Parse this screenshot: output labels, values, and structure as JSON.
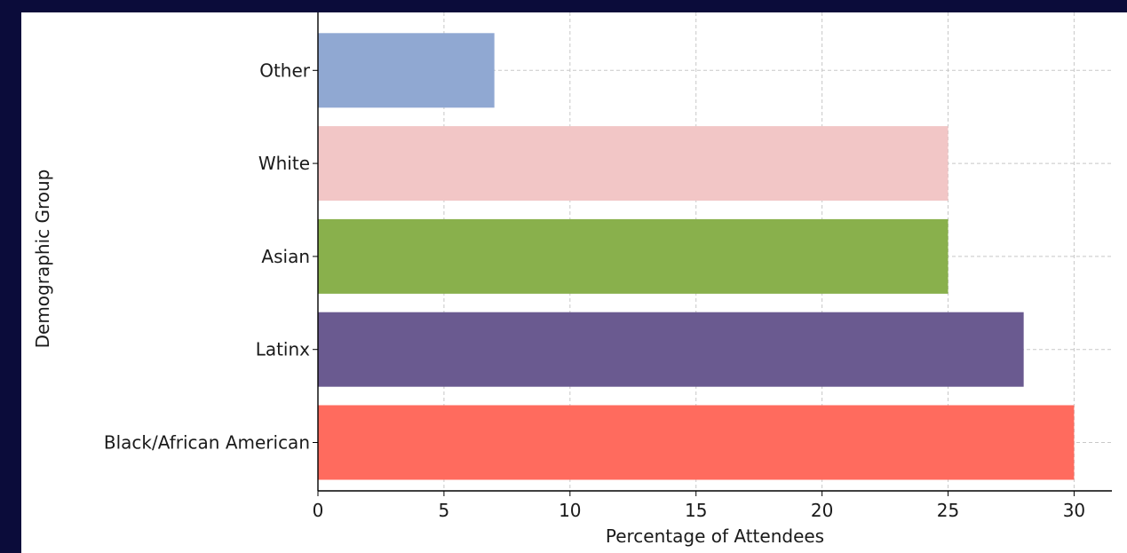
{
  "chart_data": {
    "type": "bar",
    "orientation": "horizontal",
    "categories": [
      "Black/African American",
      "Latinx",
      "Asian",
      "White",
      "Other"
    ],
    "values": [
      30,
      28,
      25,
      25,
      7
    ],
    "colors": [
      "#ff6b5e",
      "#6a5a90",
      "#89b04c",
      "#f2c6c6",
      "#90a8d2"
    ],
    "title": "",
    "xlabel": "Percentage of Attendees",
    "ylabel": "Demographic Group",
    "xlim": [
      0,
      31.5
    ],
    "xticks": [
      0,
      5,
      10,
      15,
      20,
      25,
      30
    ],
    "grid": true
  }
}
